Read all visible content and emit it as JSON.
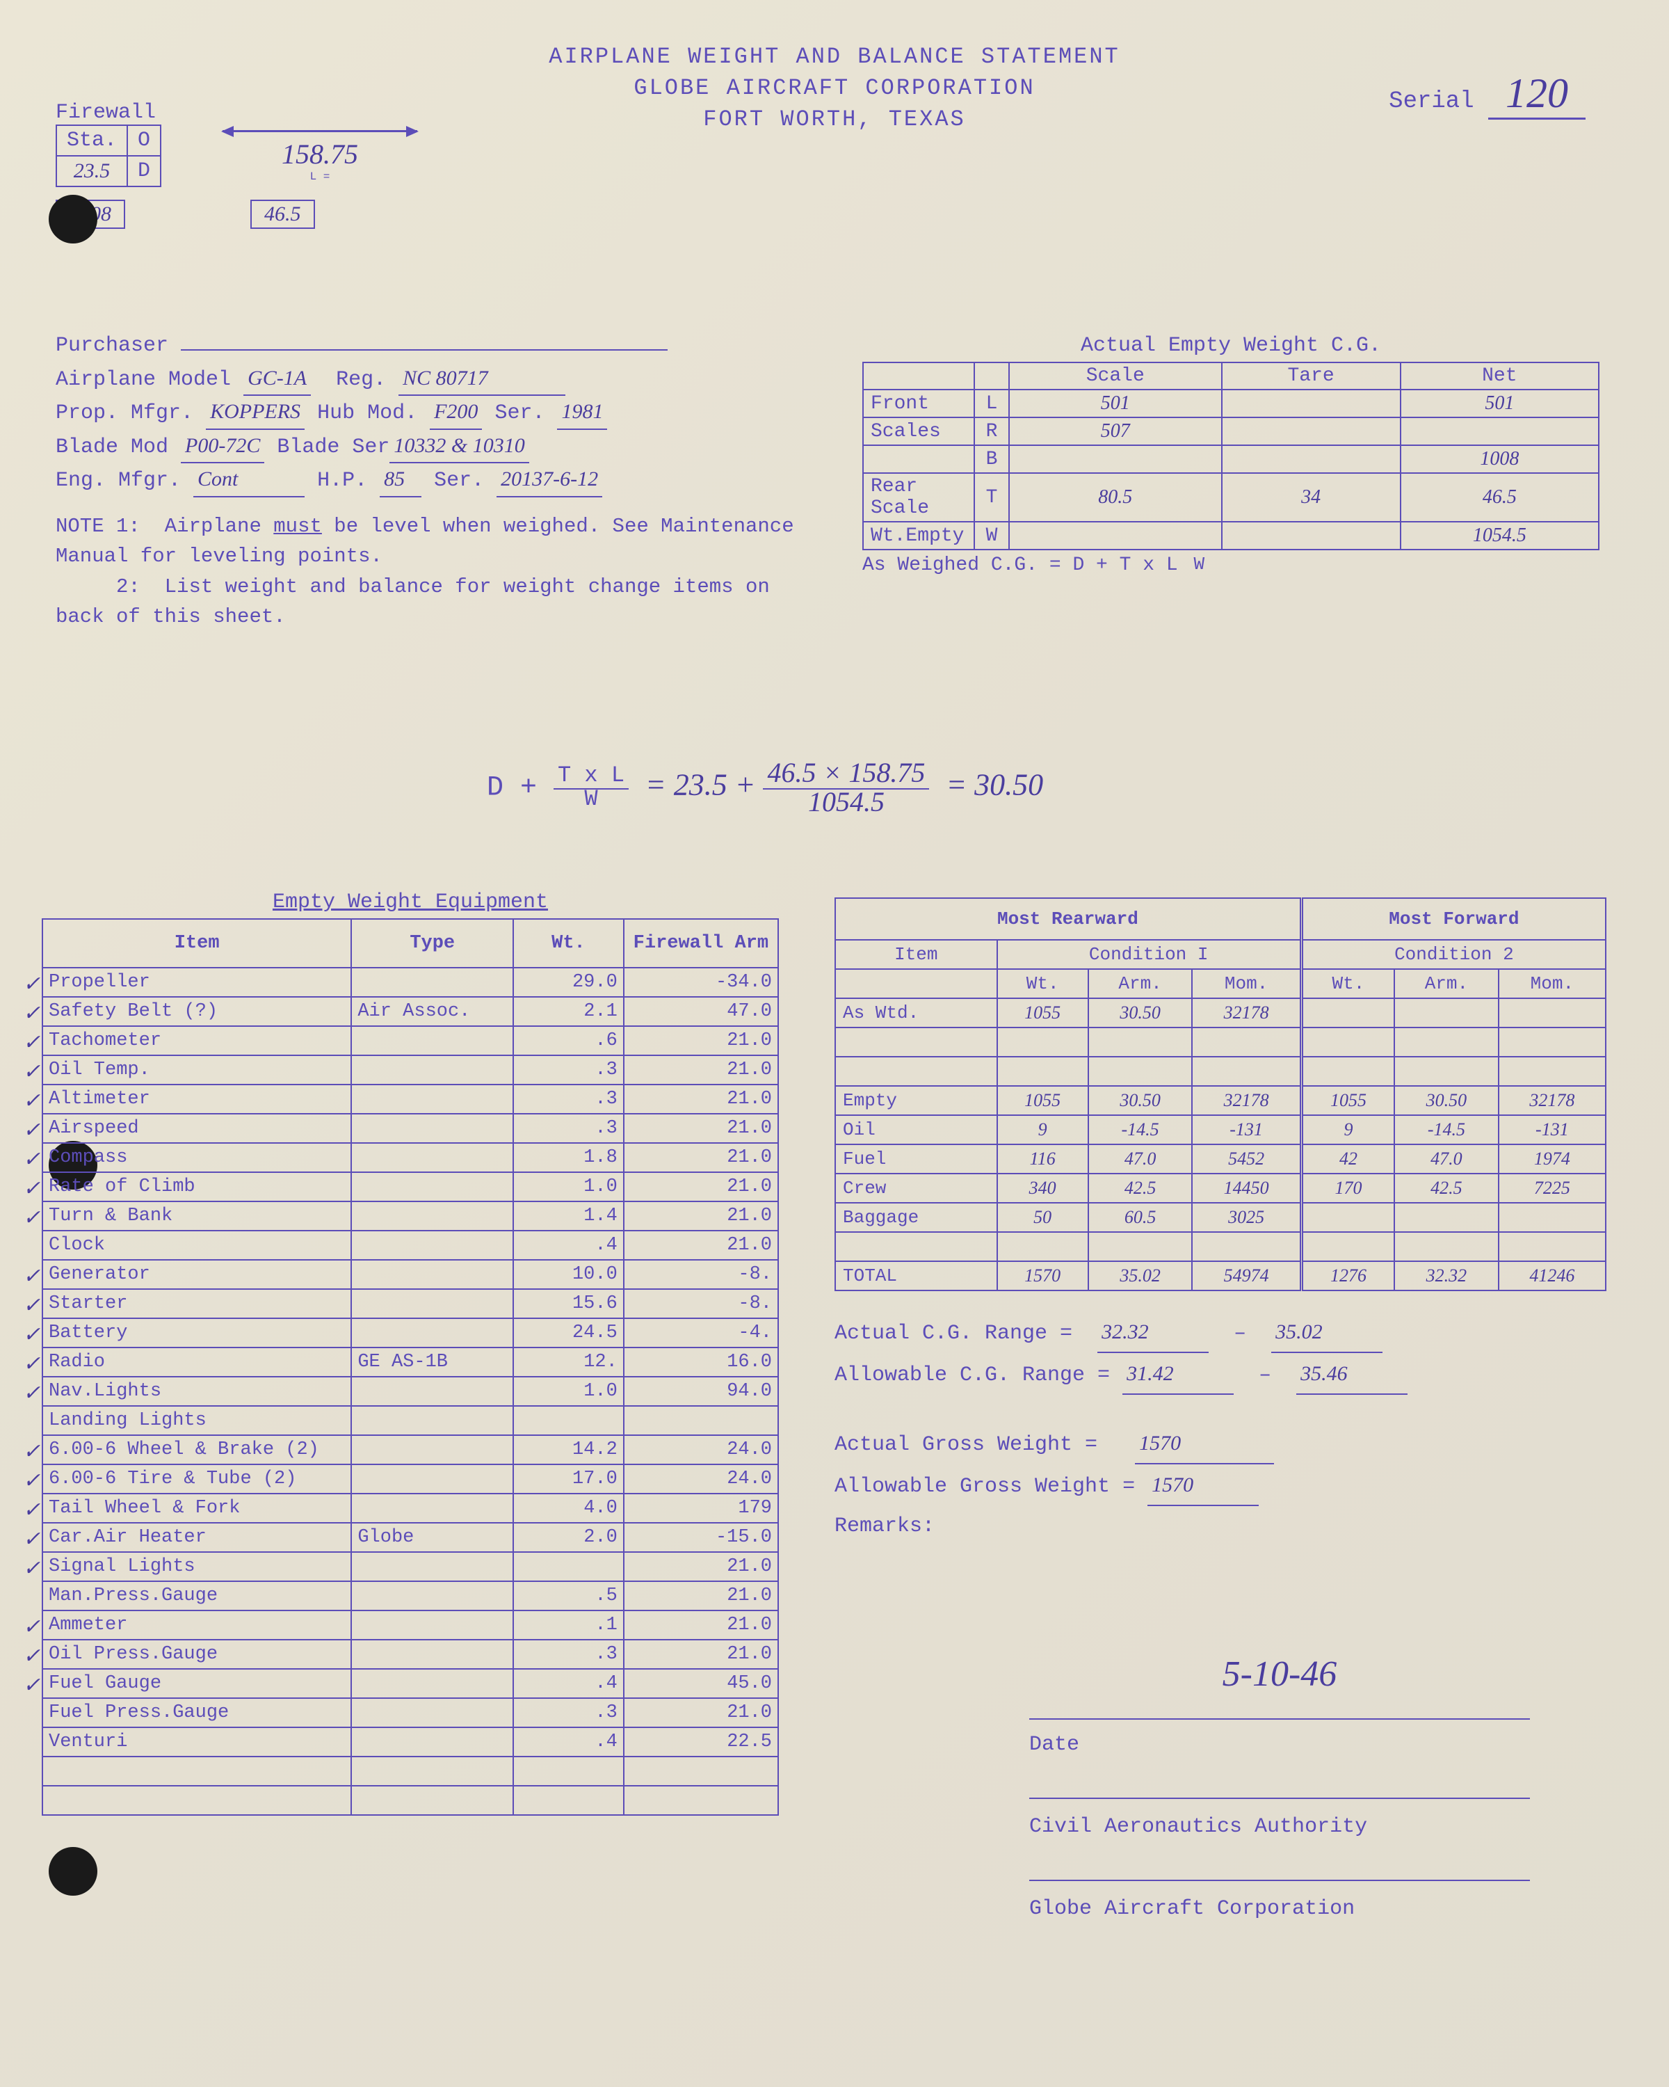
{
  "header": {
    "l1": "AIRPLANE WEIGHT AND BALANCE STATEMENT",
    "l2": "GLOBE AIRCRAFT CORPORATION",
    "l3": "FORT WORTH, TEXAS",
    "serial_label": "Serial",
    "serial": "120"
  },
  "firewall": {
    "label": "Firewall",
    "sta": "Sta.",
    "o": "O",
    "d": "D",
    "sta_val": "23.5",
    "w_box": "1008",
    "t_box": "46.5",
    "L_label": "L =",
    "L_val": "158.75"
  },
  "info": {
    "purchaser": "Purchaser",
    "model_l": "Airplane Model",
    "model": "GC-1A",
    "reg_l": "Reg.",
    "reg": "NC 80717",
    "prop_l": "Prop. Mfgr.",
    "prop": "KOPPERS",
    "hub_l": "Hub Mod.",
    "hub": "F200",
    "ser_l": "Ser.",
    "ser": "1981",
    "blade_l": "Blade Mod",
    "blade": "P00-72C",
    "bser_l": "Blade Ser",
    "bser": "10332 & 10310",
    "eng_l": "Eng. Mfgr.",
    "eng": "Cont",
    "hp_l": "H.P.",
    "hp": "85",
    "eser_l": "Ser.",
    "eser": "20137-6-12"
  },
  "notes": {
    "n1a": "NOTE 1:",
    "n1": "Airplane must be level when weighed. See Maintenance Manual for leveling points.",
    "n2a": "2:",
    "n2": "List weight and balance for weight change items on back of this sheet."
  },
  "cg": {
    "title": "Actual Empty Weight C.G.",
    "cols": [
      "",
      "",
      "Scale",
      "Tare",
      "Net"
    ],
    "rows": [
      {
        "a": "Front",
        "b": "L",
        "s": "501",
        "t": "",
        "n": "501"
      },
      {
        "a": "Scales",
        "b": "R",
        "s": "507",
        "t": "",
        "n": ""
      },
      {
        "a": "",
        "b": "B",
        "s": "",
        "t": "",
        "n": "1008"
      },
      {
        "a": "Rear Scale",
        "b": "T",
        "s": "80.5",
        "t": "34",
        "n": "46.5"
      },
      {
        "a": "Wt.Empty",
        "b": "W",
        "s": "",
        "t": "",
        "n": "1054.5"
      }
    ],
    "formula": "As Weighed C.G. = D + T x L",
    "formula_den": "W"
  },
  "bigformula": {
    "lhs": "D + ",
    "num1": "T x L",
    "den1": "W",
    "eq1": " = 23.5 + ",
    "num2": "46.5 × 158.75",
    "den2": "1054.5",
    "eq2": " = 30.50"
  },
  "equipment": {
    "title": "Empty Weight Equipment",
    "headers": [
      "Item",
      "Type",
      "Wt.",
      "Firewall Arm"
    ],
    "rows": [
      {
        "c": "✓",
        "i": "Propeller",
        "t": "",
        "w": "29.0",
        "a": "-34.0"
      },
      {
        "c": "✓",
        "i": "Safety Belt (?)",
        "t": "Air Assoc.",
        "w": "2.1",
        "a": "47.0"
      },
      {
        "c": "✓",
        "i": "Tachometer",
        "t": "",
        "w": ".6",
        "a": "21.0"
      },
      {
        "c": "✓",
        "i": "Oil Temp.",
        "t": "",
        "w": ".3",
        "a": "21.0"
      },
      {
        "c": "✓",
        "i": "Altimeter",
        "t": "",
        "w": ".3",
        "a": "21.0"
      },
      {
        "c": "✓",
        "i": "Airspeed",
        "t": "",
        "w": ".3",
        "a": "21.0"
      },
      {
        "c": "✓",
        "i": "Compass",
        "t": "",
        "w": "1.8",
        "a": "21.0"
      },
      {
        "c": "✓",
        "i": "Rate of Climb",
        "t": "",
        "w": "1.0",
        "a": "21.0"
      },
      {
        "c": "✓",
        "i": "Turn & Bank",
        "t": "",
        "w": "1.4",
        "a": "21.0"
      },
      {
        "c": "",
        "i": "Clock",
        "t": "",
        "w": ".4",
        "a": "21.0"
      },
      {
        "c": "✓",
        "i": "Generator",
        "t": "",
        "w": "10.0",
        "a": "-8."
      },
      {
        "c": "✓",
        "i": "Starter",
        "t": "",
        "w": "15.6",
        "a": "-8."
      },
      {
        "c": "✓",
        "i": "Battery",
        "t": "",
        "w": "24.5",
        "a": "-4."
      },
      {
        "c": "✓",
        "i": "Radio",
        "t": "GE AS-1B",
        "w": "12.",
        "a": "16.0"
      },
      {
        "c": "✓",
        "i": "Nav.Lights",
        "t": "",
        "w": "1.0",
        "a": "94.0"
      },
      {
        "c": "",
        "i": "Landing Lights",
        "t": "",
        "w": "",
        "a": ""
      },
      {
        "c": "✓",
        "i": "6.00-6 Wheel & Brake (2)",
        "t": "",
        "w": "14.2",
        "a": "24.0"
      },
      {
        "c": "✓",
        "i": "6.00-6 Tire & Tube (2)",
        "t": "",
        "w": "17.0",
        "a": "24.0"
      },
      {
        "c": "✓",
        "i": "Tail Wheel & Fork",
        "t": "",
        "w": "4.0",
        "a": "179"
      },
      {
        "c": "✓",
        "i": "Car.Air Heater",
        "t": "Globe",
        "w": "2.0",
        "a": "-15.0"
      },
      {
        "c": "✓",
        "i": "Signal Lights",
        "t": "",
        "w": "",
        "a": "21.0"
      },
      {
        "c": "",
        "i": "Man.Press.Gauge",
        "t": "",
        "w": ".5",
        "a": "21.0"
      },
      {
        "c": "✓",
        "i": "Ammeter",
        "t": "",
        "w": ".1",
        "a": "21.0"
      },
      {
        "c": "✓",
        "i": "Oil Press.Gauge",
        "t": "",
        "w": ".3",
        "a": "21.0"
      },
      {
        "c": "✓",
        "i": "Fuel Gauge",
        "t": "",
        "w": ".4",
        "a": "45.0"
      },
      {
        "c": "",
        "i": "Fuel Press.Gauge",
        "t": "",
        "w": ".3",
        "a": "21.0"
      },
      {
        "c": "",
        "i": "Venturi",
        "t": "",
        "w": ".4",
        "a": "22.5"
      },
      {
        "c": "",
        "i": "",
        "t": "",
        "w": "",
        "a": ""
      },
      {
        "c": "",
        "i": "",
        "t": "",
        "w": "",
        "a": ""
      }
    ]
  },
  "conditions": {
    "rear": "Most Rearward",
    "fwd": "Most Forward",
    "item": "Item",
    "c1": "Condition I",
    "c2": "Condition 2",
    "sub": [
      "Wt.",
      "Arm.",
      "Mom.",
      "Wt.",
      "Arm.",
      "Mom."
    ],
    "rows": [
      {
        "i": "As Wtd.",
        "d": [
          "1055",
          "30.50",
          "32178",
          "",
          "",
          ""
        ]
      },
      {
        "i": "",
        "d": [
          "",
          "",
          "",
          "",
          "",
          ""
        ]
      },
      {
        "i": "",
        "d": [
          "",
          "",
          "",
          "",
          "",
          ""
        ]
      },
      {
        "i": "Empty",
        "d": [
          "1055",
          "30.50",
          "32178",
          "1055",
          "30.50",
          "32178"
        ]
      },
      {
        "i": "Oil",
        "d": [
          "9",
          "-14.5",
          "-131",
          "9",
          "-14.5",
          "-131"
        ]
      },
      {
        "i": "Fuel",
        "d": [
          "116",
          "47.0",
          "5452",
          "42",
          "47.0",
          "1974"
        ]
      },
      {
        "i": "Crew",
        "d": [
          "340",
          "42.5",
          "14450",
          "170",
          "42.5",
          "7225"
        ]
      },
      {
        "i": "Baggage",
        "d": [
          "50",
          "60.5",
          "3025",
          "",
          "",
          ""
        ]
      },
      {
        "i": "",
        "d": [
          "",
          "",
          "",
          "",
          "",
          ""
        ]
      },
      {
        "i": "TOTAL",
        "d": [
          "1570",
          "35.02",
          "54974",
          "1276",
          "32.32",
          "41246"
        ]
      }
    ]
  },
  "ranges": {
    "acg": "Actual C.G. Range =",
    "acg1": "32.32",
    "acg2": "35.02",
    "alcg": "Allowable C.G. Range =",
    "alcg1": "31.42",
    "alcg2": "35.46",
    "agw": "Actual Gross Weight =",
    "agwv": "1570",
    "algw": "Allowable Gross Weight =",
    "algwv": "1570",
    "rem": "Remarks:"
  },
  "signatures": {
    "date_val": "5-10-46",
    "date": "Date",
    "caa": "Civil Aeronautics Authority",
    "globe": "Globe Aircraft Corporation"
  }
}
